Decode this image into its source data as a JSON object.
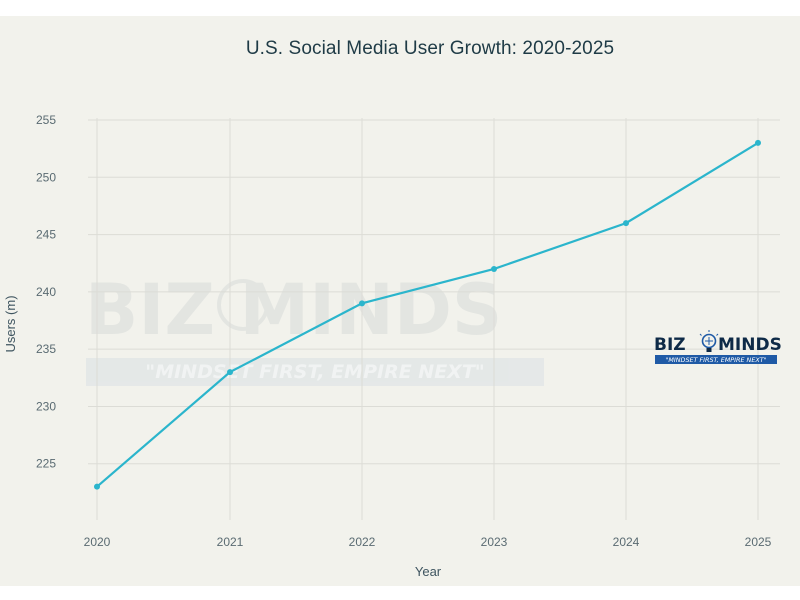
{
  "chart_data": {
    "type": "line",
    "title": "U.S. Social Media User Growth: 2020-2025",
    "xlabel": "Year",
    "ylabel": "Users (m)",
    "categories": [
      "2020",
      "2021",
      "2022",
      "2023",
      "2024",
      "2025"
    ],
    "series": [
      {
        "name": "Users (m)",
        "values": [
          223,
          233,
          239,
          242,
          246,
          253
        ]
      }
    ],
    "ylim": [
      220.5,
      255
    ],
    "yticks": [
      225,
      230,
      235,
      240,
      245,
      250,
      255
    ],
    "grid": true,
    "line_color": "#2bb5cc"
  },
  "branding": {
    "watermark_name": "BIZ MINDS",
    "watermark_tagline": "\"MINDSET FIRST, EMPIRE NEXT\"",
    "logo_left": "BIZ",
    "logo_right": "MINDS",
    "logo_tagline": "\"MINDSET FIRST, EMPIRE NEXT\"",
    "brand_color": "#1f5aa6"
  }
}
